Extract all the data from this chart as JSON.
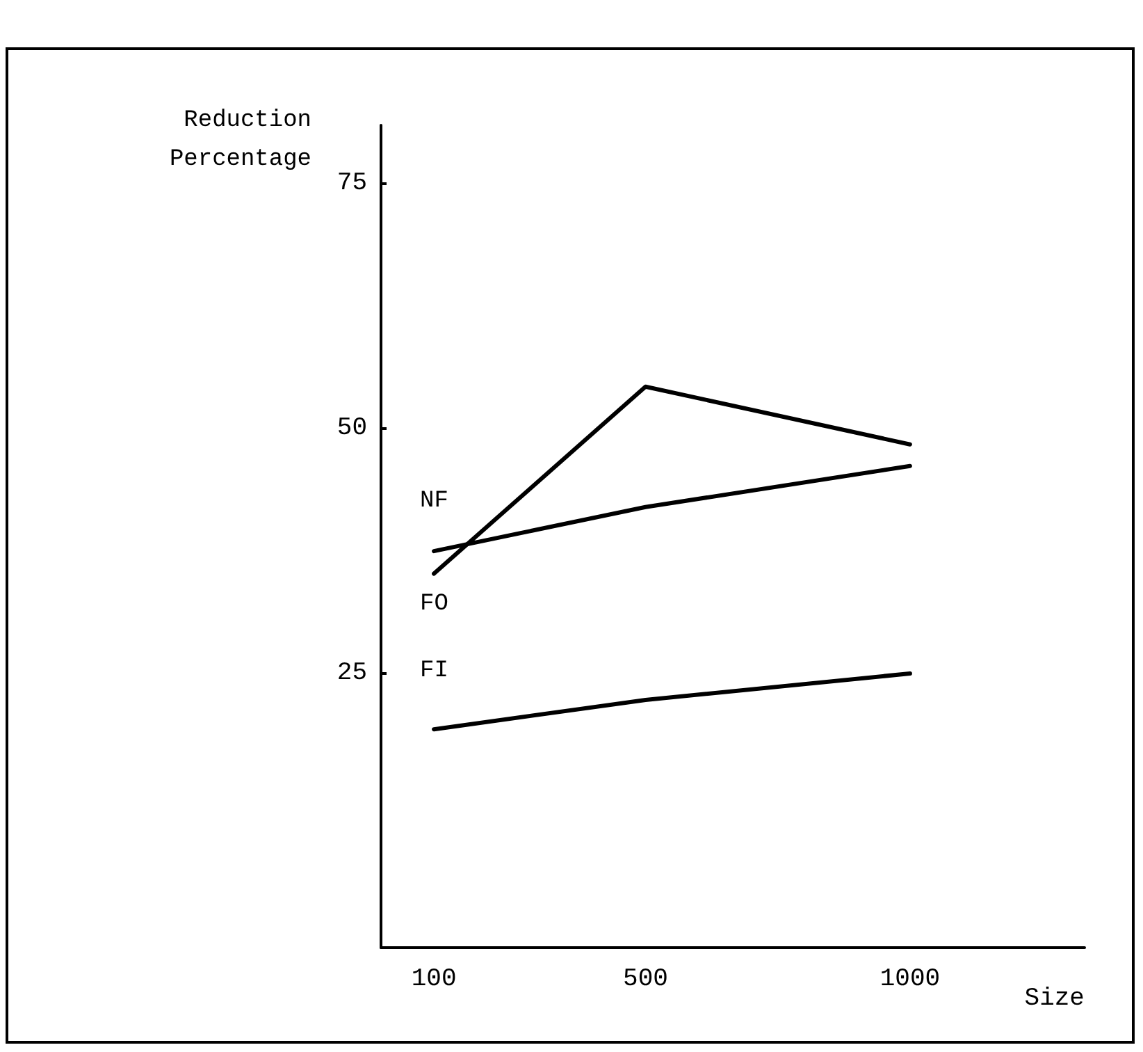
{
  "chart_data": {
    "type": "line",
    "ylabel": "Reduction\nPercentage",
    "xlabel": "Size",
    "x": [
      100,
      500,
      1000
    ],
    "series": [
      {
        "name": "NF",
        "color": "#000000",
        "values": [
          37.5,
          42,
          46.2
        ]
      },
      {
        "name": "FO",
        "color": "#000000",
        "values": [
          35.2,
          54.3,
          48.4
        ]
      },
      {
        "name": "FI",
        "color": "#000000",
        "values": [
          19.3,
          22.3,
          25.0
        ]
      }
    ],
    "xlim": [
      0,
      1330
    ],
    "xticks": [
      100,
      500,
      1000
    ],
    "ylim": [
      -3,
      81
    ],
    "yticks": [
      25,
      50,
      75
    ],
    "grid": false,
    "legend": false,
    "marker": "none",
    "line_style": "solid"
  }
}
